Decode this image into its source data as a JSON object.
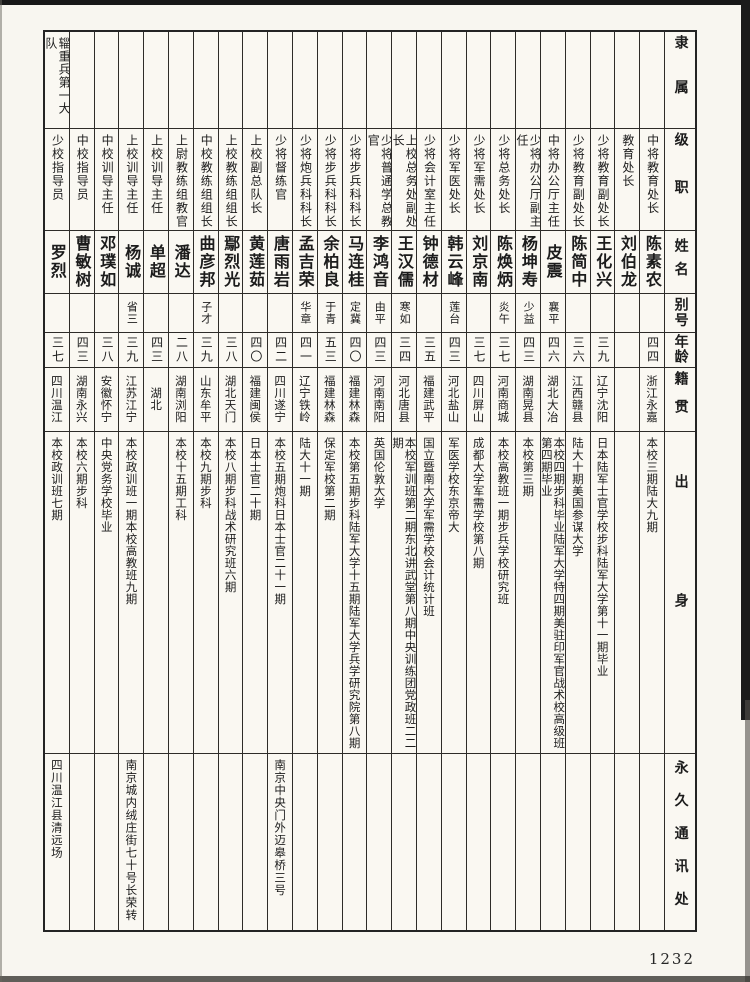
{
  "page": {
    "number": "1232"
  },
  "table": {
    "headers": {
      "affiliation": "隶属",
      "rank": "级职",
      "name": "姓名",
      "alias": "别号",
      "age": "年龄",
      "native_place": "籍贯",
      "background": "出身",
      "address": "永久通讯处"
    },
    "people": [
      {
        "affiliation": "辎重兵第一大队",
        "rank": "少校指导员",
        "name": "罗烈",
        "alias": "",
        "age": "三七",
        "native_place": "四川温江",
        "background": "本校政训班七期",
        "address": "四川温江县清远场"
      },
      {
        "affiliation": "",
        "rank": "中校指导员",
        "name": "曹敏树",
        "alias": "",
        "age": "四三",
        "native_place": "湖南永兴",
        "background": "本校六期步科",
        "address": ""
      },
      {
        "affiliation": "",
        "rank": "中校训导主任",
        "name": "邓璞如",
        "alias": "",
        "age": "三八",
        "native_place": "安徽怀宁",
        "background": "中央党务学校毕业",
        "address": ""
      },
      {
        "affiliation": "",
        "rank": "上校训导主任",
        "name": "杨诚",
        "alias": "省三",
        "age": "三九",
        "native_place": "江苏江宁",
        "background": "本校政训班一期本校高教班九期",
        "address": "南京城内绒庄街七十号长荣转"
      },
      {
        "affiliation": "",
        "rank": "上校训导主任",
        "name": "单超",
        "alias": "",
        "age": "四三",
        "native_place": "湖北",
        "background": "",
        "address": ""
      },
      {
        "affiliation": "",
        "rank": "上尉教练组教官",
        "name": "潘达",
        "alias": "",
        "age": "二八",
        "native_place": "湖南浏阳",
        "background": "本校十五期工科",
        "address": ""
      },
      {
        "affiliation": "",
        "rank": "中校教练组组长",
        "name": "曲彦邦",
        "alias": "子才",
        "age": "三九",
        "native_place": "山东牟平",
        "background": "本校九期步科",
        "address": ""
      },
      {
        "affiliation": "",
        "rank": "上校教练组组长",
        "name": "鄢烈光",
        "alias": "",
        "age": "三八",
        "native_place": "湖北天门",
        "background": "本校八期步科战术研究班六期",
        "address": ""
      },
      {
        "affiliation": "",
        "rank": "上校副总队长",
        "name": "黄莲茹",
        "alias": "",
        "age": "四〇",
        "native_place": "福建闽侯",
        "background": "日本士官二十期",
        "address": ""
      },
      {
        "affiliation": "",
        "rank": "少将督练官",
        "name": "唐雨岩",
        "alias": "",
        "age": "四二",
        "native_place": "四川遂宁",
        "background": "本校五期炮科日本士官二十一期",
        "address": "南京中央门外迈皋桥三号"
      },
      {
        "affiliation": "",
        "rank": "少将炮兵科科长",
        "name": "孟吉荣",
        "alias": "华章",
        "age": "四一",
        "native_place": "辽宁铁岭",
        "background": "陆大十一期",
        "address": ""
      },
      {
        "affiliation": "",
        "rank": "少将步兵科科长",
        "name": "余柏良",
        "alias": "于青",
        "age": "五三",
        "native_place": "福建林森",
        "background": "保定军校第二期",
        "address": ""
      },
      {
        "affiliation": "",
        "rank": "少将步兵科科长",
        "name": "马连桂",
        "alias": "定冀",
        "age": "四〇",
        "native_place": "福建林森",
        "background": "本校第五期步科陆军大学十五期陆军大学兵学研究院第八期",
        "address": ""
      },
      {
        "affiliation": "",
        "rank": "少将普通学总教官",
        "name": "李鸿音",
        "alias": "由平",
        "age": "四三",
        "native_place": "河南南阳",
        "background": "英国伦敦大学",
        "address": ""
      },
      {
        "affiliation": "",
        "rank": "上校总务处副处长",
        "name": "王汉儒",
        "alias": "寒如",
        "age": "三四",
        "native_place": "河北唐县",
        "background": "本校军训班第二期东北讲武堂第八期中央训练团党政班二二期",
        "address": ""
      },
      {
        "affiliation": "",
        "rank": "少将会计室主任",
        "name": "钟德材",
        "alias": "",
        "age": "三五",
        "native_place": "福建武平",
        "background": "国立暨南大学军需学校会计统计班",
        "address": ""
      },
      {
        "affiliation": "",
        "rank": "少将军医处长",
        "name": "韩云峰",
        "alias": "莲台",
        "age": "四三",
        "native_place": "河北盐山",
        "background": "军医学校东京帝大",
        "address": ""
      },
      {
        "affiliation": "",
        "rank": "少将军需处长",
        "name": "刘京南",
        "alias": "",
        "age": "三七",
        "native_place": "四川屏山",
        "background": "成都大学军需学校第八期",
        "address": ""
      },
      {
        "affiliation": "",
        "rank": "少将总务处长",
        "name": "陈焕炳",
        "alias": "炎午",
        "age": "三七",
        "native_place": "河南商城",
        "background": "本校高教班一期步兵学校研究班",
        "address": ""
      },
      {
        "affiliation": "",
        "rank": "少将办公厅副主任",
        "name": "杨坤寿",
        "alias": "少益",
        "age": "四三",
        "native_place": "湖南晃县",
        "background": "本校第三期",
        "address": ""
      },
      {
        "affiliation": "",
        "rank": "中将办公厅主任",
        "name": "皮震",
        "alias": "襄平",
        "age": "四六",
        "native_place": "湖北大冶",
        "background": "本校四期步科毕业陆军大学特四期美驻印军官战术校高级班第四期毕业",
        "address": ""
      },
      {
        "affiliation": "",
        "rank": "少将教育副处长",
        "name": "陈简中",
        "alias": "",
        "age": "三六",
        "native_place": "江西赣县",
        "background": "陆大十期美国参谋大学",
        "address": ""
      },
      {
        "affiliation": "",
        "rank": "少将教育副处长",
        "name": "王化兴",
        "alias": "",
        "age": "三九",
        "native_place": "辽宁沈阳",
        "background": "日本陆军士官学校步科陆军大学第十一期毕业",
        "address": ""
      },
      {
        "affiliation": "",
        "rank": "教育处长",
        "name": "刘伯龙",
        "alias": "",
        "age": "",
        "native_place": "",
        "background": "",
        "address": ""
      },
      {
        "affiliation": "",
        "rank": "中将教育处长",
        "name": "陈素农",
        "alias": "",
        "age": "四四",
        "native_place": "浙江永嘉",
        "background": "本校三期陆大九期",
        "address": ""
      }
    ]
  }
}
